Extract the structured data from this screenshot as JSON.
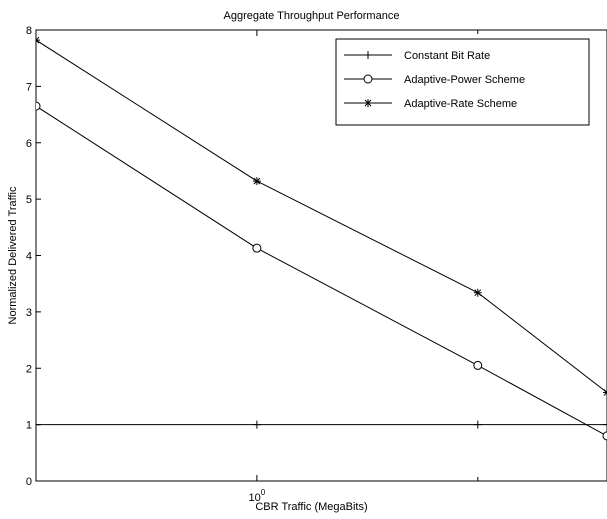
{
  "chart_data": {
    "type": "line",
    "title": "Aggregate Throughput Performance",
    "xlabel": "CBR Traffic (MegaBits)",
    "ylabel": "Normalized Delivered Traffic",
    "xscale": "log",
    "xlim": [
      0.5,
      3.0
    ],
    "ylim": [
      0,
      8
    ],
    "yticks": [
      0,
      1,
      2,
      3,
      4,
      5,
      6,
      7,
      8
    ],
    "xtick_label": {
      "base": "10",
      "exp": "0"
    },
    "xtick_value": 1,
    "xminor_ticks": [
      2
    ],
    "grid": false,
    "legend_position": "top-right",
    "series": [
      {
        "name": "Constant Bit Rate",
        "marker": "plus",
        "x": [
          0.5,
          1,
          2,
          3
        ],
        "y": [
          1,
          1,
          1,
          1
        ]
      },
      {
        "name": "Adaptive-Power Scheme",
        "marker": "circle",
        "x": [
          0.5,
          1,
          2,
          3
        ],
        "y": [
          6.65,
          4.13,
          2.05,
          0.8
        ]
      },
      {
        "name": "Adaptive-Rate Scheme",
        "marker": "star",
        "x": [
          0.5,
          1,
          2,
          3
        ],
        "y": [
          7.82,
          5.32,
          3.34,
          1.57
        ]
      }
    ]
  }
}
